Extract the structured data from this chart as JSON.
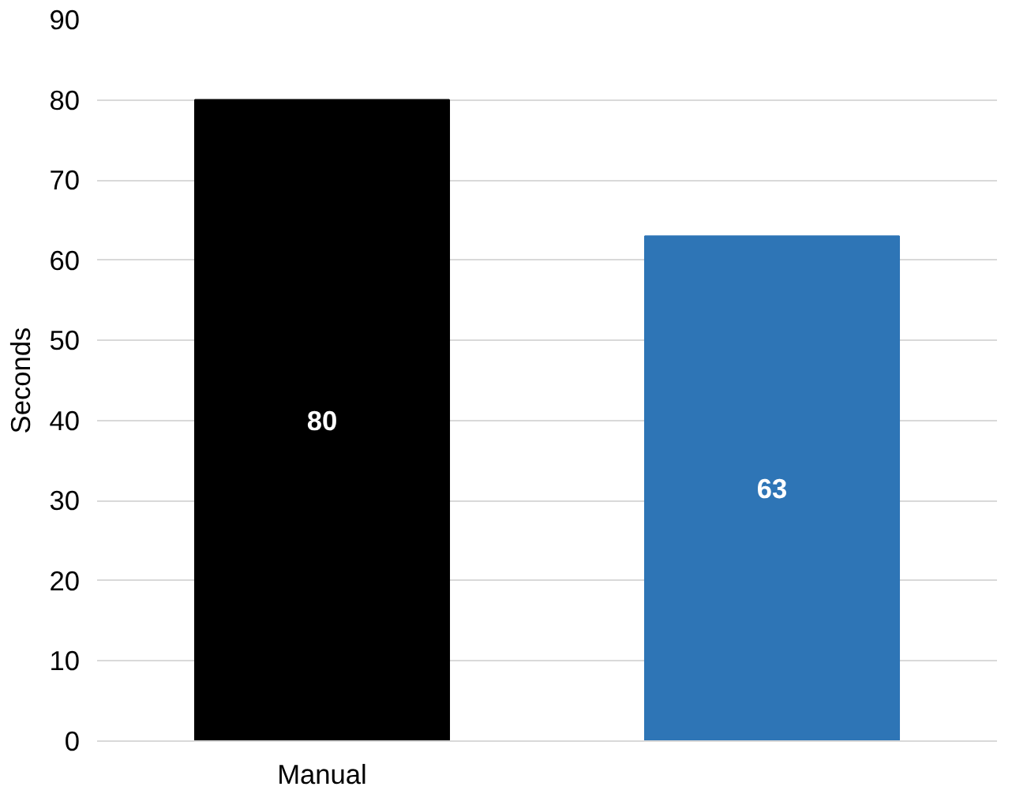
{
  "chart_data": {
    "type": "bar",
    "ylabel": "Seconds",
    "categories": [
      "Manual",
      null
    ],
    "values": [
      80,
      63
    ],
    "colors": [
      "#000000",
      "#2e75b6"
    ],
    "ylim": [
      0,
      90
    ],
    "yticks": [
      0,
      10,
      20,
      30,
      40,
      50,
      60,
      70,
      80,
      90
    ],
    "grid": "y",
    "data_labels": true
  }
}
